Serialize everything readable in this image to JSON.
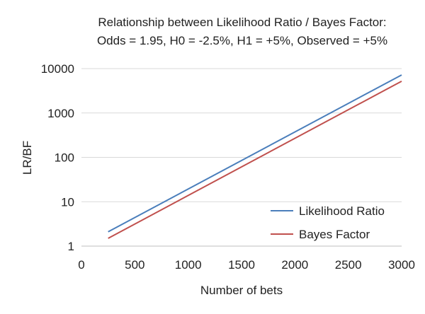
{
  "chart_data": {
    "type": "line",
    "title": [
      "Relationship between Likelihood Ratio / Bayes Factor:",
      "Odds = 1.95, H0 = -2.5%, H1 = +5%, Observed = +5%"
    ],
    "xlabel": "Number of bets",
    "ylabel": "LR/BF",
    "xlim": [
      0,
      3000
    ],
    "ylim": [
      1,
      10000
    ],
    "y_scale": "log",
    "x_ticks": [
      0,
      500,
      1000,
      1500,
      2000,
      2500,
      3000
    ],
    "y_ticks": [
      1,
      10,
      100,
      1000,
      10000
    ],
    "x_tick_labels": [
      "0",
      "500",
      "1000",
      "1500",
      "2000",
      "2500",
      "3000"
    ],
    "y_tick_labels": [
      "1",
      "10",
      "100",
      "1000",
      "10000"
    ],
    "grid": "horizontal",
    "legend": "bottom-right",
    "series": [
      {
        "name": "Likelihood Ratio",
        "color": "#4a7ebb",
        "x": [
          250,
          3000
        ],
        "y": [
          2.1,
          7200
        ]
      },
      {
        "name": "Bayes Factor",
        "color": "#c0504d",
        "x": [
          250,
          3000
        ],
        "y": [
          1.5,
          5200
        ]
      }
    ]
  }
}
